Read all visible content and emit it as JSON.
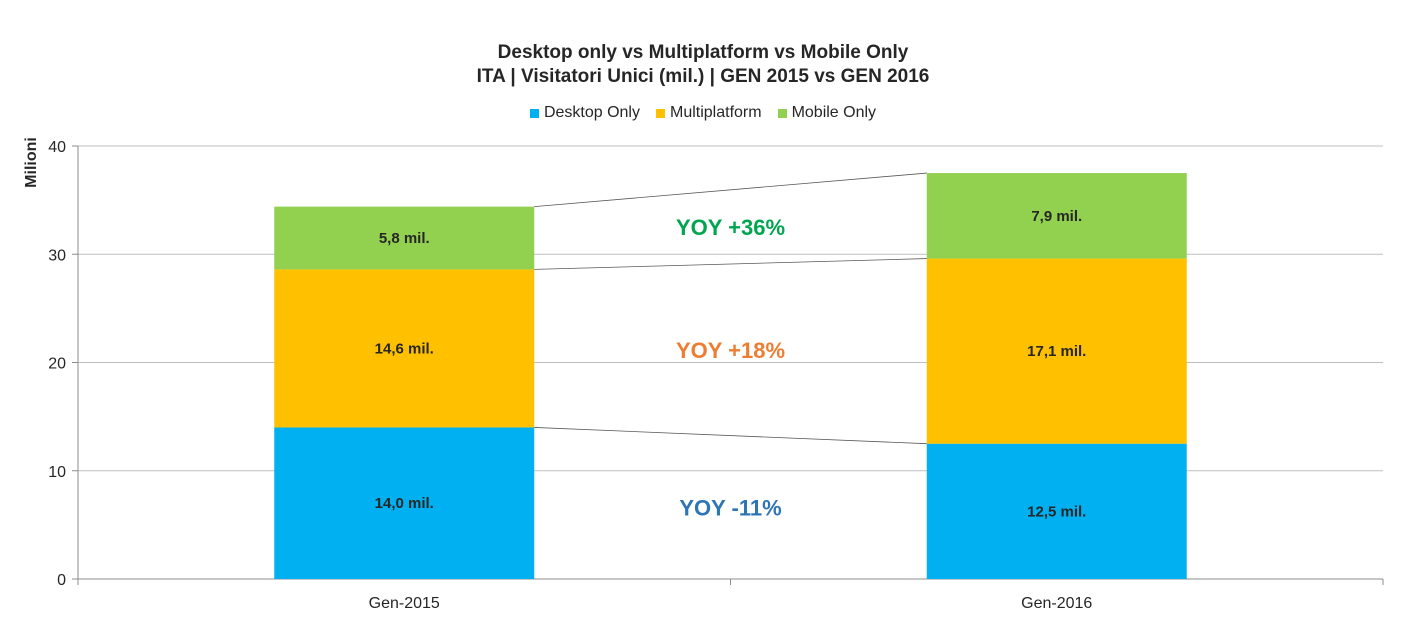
{
  "chart_data": {
    "type": "bar",
    "stacked": true,
    "title_lines": [
      "Desktop only vs Multiplatform vs Mobile Only",
      "ITA | Visitatori Unici (mil.) | GEN 2015 vs GEN 2016"
    ],
    "ylabel": "Milioni",
    "xlabel": "",
    "ylim": [
      0,
      40
    ],
    "yticks": [
      0,
      10,
      20,
      30,
      40
    ],
    "grid": true,
    "legend_position": "top-center",
    "categories": [
      "Gen-2015",
      "Gen-2016"
    ],
    "series": [
      {
        "name": "Desktop Only",
        "color": "#00B0F0",
        "values": [
          14.0,
          12.5
        ],
        "labels": [
          "14,0 mil.",
          "12,5 mil."
        ]
      },
      {
        "name": "Multiplatform",
        "color": "#FFC000",
        "values": [
          14.6,
          17.1
        ],
        "labels": [
          "14,6 mil.",
          "17,1 mil."
        ]
      },
      {
        "name": "Mobile Only",
        "color": "#92D050",
        "values": [
          5.8,
          7.9
        ],
        "labels": [
          "5,8 mil.",
          "7,9 mil."
        ]
      }
    ],
    "annotations": [
      {
        "text": "YOY +36%",
        "series": "Mobile Only",
        "color": "#00A550"
      },
      {
        "text": "YOY +18%",
        "series": "Multiplatform",
        "color": "#ED7D31"
      },
      {
        "text": "YOY -11%",
        "series": "Desktop Only",
        "color": "#2E75B6"
      }
    ]
  }
}
